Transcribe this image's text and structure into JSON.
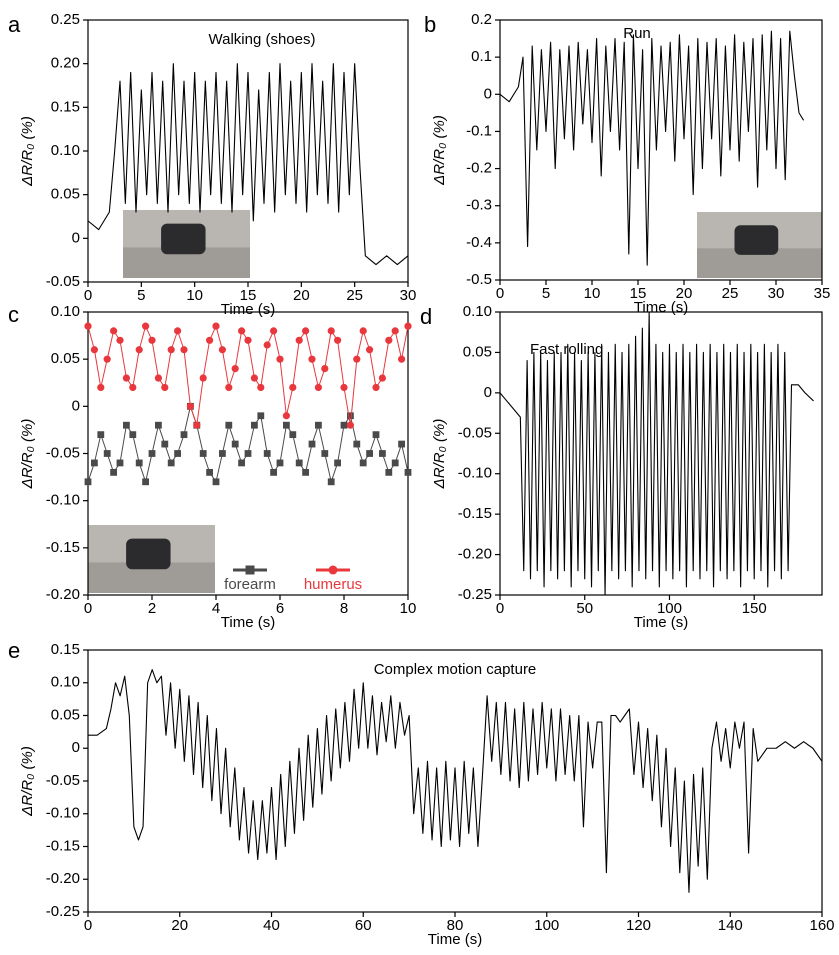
{
  "chart_data": [
    {
      "type": "line",
      "panel": "a",
      "title": "Walking (shoes)",
      "xlabel": "Time (s)",
      "ylabel": "ΔR/R₀ (%)",
      "color": "#000000",
      "x": [
        0,
        1,
        2,
        2.5,
        3,
        3.5,
        4,
        4.5,
        5,
        5.5,
        6,
        6.5,
        7,
        7.5,
        8,
        8.5,
        9,
        9.5,
        10,
        10.5,
        11,
        11.5,
        12,
        12.5,
        13,
        13.5,
        14,
        14.5,
        15,
        15.5,
        16,
        16.5,
        17,
        17.5,
        18,
        18.5,
        19,
        19.5,
        20,
        20.5,
        21,
        21.5,
        22,
        22.5,
        23,
        23.5,
        24,
        24.5,
        25,
        25.5,
        26,
        27,
        28,
        29,
        30
      ],
      "values": [
        0.02,
        0.01,
        0.03,
        0.1,
        0.18,
        0.04,
        0.19,
        0.03,
        0.17,
        0.05,
        0.19,
        0.04,
        0.18,
        0.03,
        0.2,
        0.05,
        0.18,
        0.04,
        0.19,
        0.03,
        0.18,
        0.05,
        0.19,
        0.04,
        0.18,
        0.03,
        0.2,
        0.05,
        0.19,
        0.02,
        0.17,
        0.04,
        0.19,
        0.03,
        0.2,
        0.05,
        0.18,
        0.04,
        0.19,
        0.03,
        0.2,
        0.05,
        0.18,
        0.04,
        0.2,
        0.03,
        0.19,
        0.05,
        0.2,
        0.08,
        -0.02,
        -0.03,
        -0.02,
        -0.03,
        -0.02
      ],
      "xlim": [
        0,
        30
      ],
      "xticks": [
        0,
        5,
        10,
        15,
        20,
        25,
        30
      ],
      "ylim": [
        -0.05,
        0.25
      ],
      "yticks": [
        0.25,
        {
          "value": 0.2,
          "label": "0.20"
        },
        0.15,
        {
          "value": 0.1,
          "label": "0.10"
        },
        0.05,
        0,
        -0.05
      ]
    },
    {
      "type": "line",
      "panel": "b",
      "title": "Run",
      "xlabel": "Time (s)",
      "ylabel": "ΔR/R₀ (%)",
      "color": "#000000",
      "x": [
        0,
        1,
        2,
        2.5,
        3,
        3.5,
        4,
        4.5,
        5,
        5.5,
        6,
        6.5,
        7,
        7.5,
        8,
        8.5,
        9,
        9.5,
        10,
        10.5,
        11,
        11.5,
        12,
        12.5,
        13,
        13.5,
        14,
        14.5,
        15,
        15.5,
        16,
        16.5,
        17,
        17.5,
        18,
        18.5,
        19,
        19.5,
        20,
        20.5,
        21,
        21.5,
        22,
        22.5,
        23,
        23.5,
        24,
        24.5,
        25,
        25.5,
        26,
        26.5,
        27,
        27.5,
        28,
        28.5,
        29,
        29.5,
        30,
        30.5,
        31,
        31.5,
        32,
        32.5,
        33
      ],
      "values": [
        0,
        -0.02,
        0.02,
        0.1,
        -0.41,
        0.13,
        -0.15,
        0.12,
        -0.1,
        0.14,
        -0.2,
        0.12,
        -0.12,
        0.13,
        -0.15,
        0.14,
        -0.08,
        0.12,
        -0.13,
        0.15,
        -0.22,
        0.13,
        -0.1,
        0.15,
        -0.15,
        0.14,
        -0.43,
        0.16,
        -0.2,
        0.12,
        -0.46,
        0.15,
        -0.15,
        0.13,
        -0.1,
        0.14,
        -0.18,
        0.16,
        -0.12,
        0.13,
        -0.27,
        0.15,
        -0.2,
        0.14,
        -0.12,
        0.15,
        -0.22,
        0.13,
        -0.15,
        0.16,
        -0.18,
        0.14,
        -0.1,
        0.15,
        -0.25,
        0.16,
        -0.15,
        0.17,
        -0.2,
        0.15,
        -0.23,
        0.17,
        0.05,
        -0.05,
        -0.07
      ],
      "xlim": [
        0,
        35
      ],
      "xticks": [
        0,
        5,
        10,
        15,
        20,
        25,
        30,
        35
      ],
      "ylim": [
        -0.5,
        0.2
      ],
      "yticks": [
        0.2,
        0.1,
        0,
        -0.1,
        -0.2,
        -0.3,
        -0.4,
        -0.5
      ]
    },
    {
      "type": "line-markers",
      "panel": "c",
      "xlabel": "Time (s)",
      "ylabel": "ΔR/R₀ (%)",
      "x": [
        0,
        0.2,
        0.4,
        0.6,
        0.8,
        1,
        1.2,
        1.4,
        1.6,
        1.8,
        2,
        2.2,
        2.4,
        2.6,
        2.8,
        3,
        3.2,
        3.4,
        3.6,
        3.8,
        4,
        4.2,
        4.4,
        4.6,
        4.8,
        5,
        5.2,
        5.4,
        5.6,
        5.8,
        6,
        6.2,
        6.4,
        6.6,
        6.8,
        7,
        7.2,
        7.4,
        7.6,
        7.8,
        8,
        8.2,
        8.4,
        8.6,
        8.8,
        9,
        9.2,
        9.4,
        9.6,
        9.8,
        10
      ],
      "series": [
        {
          "name": "forearm",
          "color": "#4a4a4a",
          "marker": "square",
          "values": [
            -0.08,
            -0.06,
            -0.03,
            -0.05,
            -0.07,
            -0.06,
            -0.02,
            -0.03,
            -0.06,
            -0.08,
            -0.05,
            -0.02,
            -0.04,
            -0.06,
            -0.05,
            -0.03,
            0,
            -0.02,
            -0.05,
            -0.07,
            -0.08,
            -0.05,
            -0.02,
            -0.04,
            -0.06,
            -0.05,
            -0.02,
            -0.01,
            -0.05,
            -0.07,
            -0.06,
            -0.02,
            -0.03,
            -0.06,
            -0.07,
            -0.04,
            -0.02,
            -0.05,
            -0.08,
            -0.06,
            -0.02,
            -0.01,
            -0.04,
            -0.06,
            -0.05,
            -0.03,
            -0.05,
            -0.07,
            -0.06,
            -0.04,
            -0.07
          ]
        },
        {
          "name": "humerus",
          "color": "#e8383d",
          "marker": "circle",
          "values": [
            0.085,
            0.06,
            0.02,
            0.05,
            0.08,
            0.07,
            0.03,
            0.02,
            0.06,
            0.085,
            0.07,
            0.03,
            0.02,
            0.06,
            0.08,
            0.06,
            0,
            -0.02,
            0.03,
            0.07,
            0.085,
            0.06,
            0.02,
            0.04,
            0.08,
            0.07,
            0.03,
            0.02,
            0.065,
            0.08,
            0.05,
            -0.01,
            0.02,
            0.07,
            0.08,
            0.05,
            0.02,
            0.04,
            0.08,
            0.07,
            0.02,
            -0.02,
            0.05,
            0.08,
            0.06,
            0.02,
            0.03,
            0.07,
            0.08,
            0.05,
            0.085
          ]
        }
      ],
      "xlim": [
        0,
        10
      ],
      "xticks": [
        0,
        2,
        4,
        6,
        8,
        10
      ],
      "ylim": [
        -0.2,
        0.1
      ],
      "yticks": [
        {
          "value": 0.1,
          "label": "0.10"
        },
        0.05,
        0,
        -0.05,
        {
          "value": -0.1,
          "label": "-0.10"
        },
        -0.15,
        {
          "value": -0.2,
          "label": "-0.20"
        }
      ]
    },
    {
      "type": "line",
      "panel": "d",
      "title": "Fast rolling",
      "xlabel": "Time (s)",
      "ylabel": "ΔR/R₀ (%)",
      "color": "#000000",
      "x": [
        0,
        4,
        8,
        12,
        14,
        16,
        18,
        20,
        22,
        24,
        26,
        28,
        30,
        32,
        34,
        36,
        38,
        40,
        42,
        44,
        46,
        48,
        50,
        52,
        54,
        56,
        58,
        60,
        62,
        64,
        66,
        68,
        70,
        72,
        74,
        76,
        78,
        80,
        82,
        84,
        86,
        88,
        90,
        92,
        94,
        96,
        98,
        100,
        102,
        104,
        106,
        108,
        110,
        112,
        114,
        116,
        118,
        120,
        122,
        124,
        126,
        128,
        130,
        132,
        134,
        136,
        138,
        140,
        142,
        144,
        146,
        148,
        150,
        152,
        154,
        156,
        158,
        160,
        162,
        164,
        166,
        168,
        170,
        172,
        176,
        180,
        185
      ],
      "values": [
        0,
        -0.01,
        -0.02,
        -0.03,
        -0.22,
        0.04,
        -0.23,
        0.05,
        -0.22,
        0.05,
        -0.24,
        0.04,
        -0.22,
        0.05,
        -0.23,
        0.05,
        -0.22,
        0.06,
        -0.24,
        0.05,
        -0.22,
        0.04,
        -0.23,
        0.05,
        -0.24,
        0.05,
        -0.22,
        0.06,
        -0.25,
        0.05,
        -0.22,
        0.06,
        -0.23,
        0.05,
        -0.22,
        0.06,
        -0.24,
        0.07,
        -0.22,
        0.08,
        -0.23,
        0.1,
        -0.22,
        0.06,
        -0.24,
        0.05,
        -0.22,
        0.06,
        -0.23,
        0.05,
        -0.22,
        0.06,
        -0.24,
        0.05,
        -0.22,
        0.06,
        -0.23,
        0.05,
        -0.22,
        0.06,
        -0.24,
        0.05,
        -0.22,
        0.06,
        -0.23,
        0.05,
        -0.22,
        0.06,
        -0.24,
        0.05,
        -0.22,
        0.06,
        -0.23,
        0.05,
        -0.22,
        0.06,
        -0.24,
        0.05,
        -0.22,
        0.06,
        -0.23,
        0.05,
        -0.22,
        0.01,
        0.01,
        0,
        -0.01
      ],
      "xlim": [
        0,
        190
      ],
      "xticks": [
        0,
        50,
        100,
        150
      ],
      "ylim": [
        -0.25,
        0.1
      ],
      "yticks": [
        {
          "value": 0.1,
          "label": "0.10"
        },
        0.05,
        0,
        -0.05,
        {
          "value": -0.1,
          "label": "-0.10"
        },
        -0.15,
        {
          "value": -0.2,
          "label": "-0.20"
        },
        -0.25
      ]
    },
    {
      "type": "line",
      "panel": "e",
      "title": "Complex motion capture",
      "xlabel": "Time (s)",
      "ylabel": "ΔR/R₀ (%)",
      "color": "#000000",
      "x": [
        0,
        2,
        4,
        5,
        6,
        7,
        8,
        9,
        10,
        11,
        12,
        13,
        14,
        15,
        16,
        17,
        18,
        19,
        20,
        21,
        22,
        23,
        24,
        25,
        26,
        27,
        28,
        29,
        30,
        31,
        32,
        33,
        34,
        35,
        36,
        37,
        38,
        39,
        40,
        41,
        42,
        43,
        44,
        45,
        46,
        47,
        48,
        49,
        50,
        51,
        52,
        53,
        54,
        55,
        56,
        57,
        58,
        59,
        60,
        61,
        62,
        63,
        64,
        65,
        66,
        67,
        68,
        69,
        70,
        71,
        72,
        73,
        74,
        75,
        76,
        77,
        78,
        79,
        80,
        81,
        82,
        83,
        84,
        85,
        86,
        87,
        88,
        89,
        90,
        91,
        92,
        93,
        94,
        95,
        96,
        97,
        98,
        99,
        100,
        101,
        102,
        103,
        104,
        105,
        106,
        107,
        108,
        109,
        110,
        111,
        112,
        113,
        114,
        115,
        116,
        117,
        118,
        119,
        120,
        121,
        122,
        123,
        124,
        125,
        126,
        127,
        128,
        129,
        130,
        131,
        132,
        133,
        134,
        135,
        136,
        137,
        138,
        139,
        140,
        141,
        142,
        143,
        144,
        145,
        146,
        147,
        148,
        150,
        152,
        154,
        156,
        158,
        160
      ],
      "values": [
        0.02,
        0.02,
        0.03,
        0.06,
        0.1,
        0.08,
        0.11,
        0.05,
        -0.12,
        -0.14,
        -0.12,
        0.1,
        0.12,
        0.1,
        0.11,
        0.02,
        0.1,
        0,
        0.09,
        -0.02,
        0.08,
        -0.04,
        0.07,
        -0.06,
        0.05,
        -0.08,
        0.03,
        -0.1,
        0,
        -0.12,
        -0.03,
        -0.14,
        -0.06,
        -0.16,
        -0.08,
        -0.17,
        -0.08,
        -0.16,
        -0.06,
        -0.17,
        -0.04,
        -0.15,
        -0.02,
        -0.13,
        0,
        -0.11,
        0.02,
        -0.09,
        0.03,
        -0.07,
        0.05,
        -0.05,
        0.06,
        -0.03,
        0.07,
        -0.02,
        0.09,
        0,
        0.1,
        0,
        0.08,
        -0.01,
        0.07,
        0.01,
        0.08,
        0,
        0.07,
        0.02,
        0.05,
        -0.1,
        -0.03,
        -0.13,
        -0.02,
        -0.14,
        -0.03,
        -0.15,
        -0.02,
        -0.14,
        -0.03,
        -0.15,
        -0.02,
        -0.13,
        -0.03,
        -0.15,
        -0.04,
        0.08,
        -0.02,
        0.07,
        -0.04,
        0.07,
        -0.05,
        0.06,
        -0.06,
        0.07,
        -0.05,
        0.06,
        -0.04,
        0.07,
        -0.03,
        0.06,
        -0.05,
        0.06,
        -0.04,
        0.05,
        -0.05,
        0.05,
        -0.12,
        0.04,
        -0.03,
        0.04,
        0.04,
        -0.19,
        0.05,
        0.05,
        0.04,
        0.05,
        0.06,
        -0.04,
        0.04,
        -0.06,
        0.03,
        -0.08,
        0.02,
        -0.12,
        0,
        -0.15,
        -0.03,
        -0.19,
        -0.05,
        -0.22,
        -0.04,
        -0.18,
        -0.03,
        -0.2,
        0,
        0.04,
        -0.02,
        0.03,
        -0.03,
        0.04,
        0,
        0.04,
        -0.16,
        0.03,
        -0.02,
        -0.01,
        0,
        0,
        0.01,
        0,
        0.01,
        0,
        -0.02
      ],
      "xlim": [
        0,
        160
      ],
      "xticks": [
        0,
        20,
        40,
        60,
        80,
        100,
        120,
        140,
        160
      ],
      "ylim": [
        -0.25,
        0.15
      ],
      "yticks": [
        0.15,
        {
          "value": 0.1,
          "label": "0.10"
        },
        0.05,
        0,
        -0.05,
        {
          "value": -0.1,
          "label": "-0.10"
        },
        -0.15,
        {
          "value": -0.2,
          "label": "-0.20"
        },
        -0.25
      ]
    }
  ]
}
